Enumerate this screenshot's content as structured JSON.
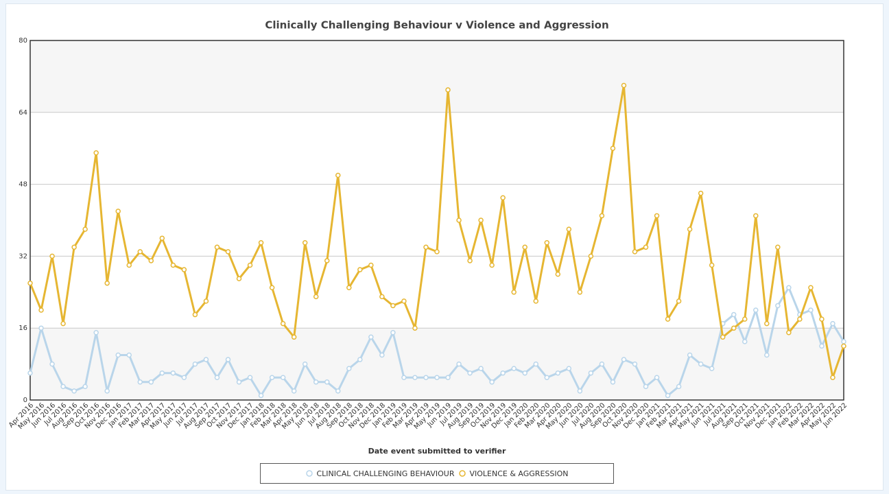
{
  "chart_data": {
    "type": "line",
    "title": "Clinically Challenging Behaviour v Violence and Aggression",
    "x_label": "Date event submitted to verifier",
    "categories": [
      "Apr 2016",
      "May 2016",
      "Jun 2016",
      "Jul 2016",
      "Aug 2016",
      "Sep 2016",
      "Oct 2016",
      "Nov 2016",
      "Dec 2016",
      "Jan 2017",
      "Feb 2017",
      "Mar 2017",
      "Apr 2017",
      "May 2017",
      "Jun 2017",
      "Jul 2017",
      "Aug 2017",
      "Sep 2017",
      "Oct 2017",
      "Nov 2017",
      "Dec 2017",
      "Jan 2018",
      "Feb 2018",
      "Mar 2018",
      "Apr 2018",
      "May 2018",
      "Jun 2018",
      "Jul 2018",
      "Aug 2018",
      "Sep 2018",
      "Oct 2018",
      "Nov 2018",
      "Dec 2018",
      "Jan 2019",
      "Feb 2019",
      "Mar 2019",
      "Apr 2019",
      "May 2019",
      "Jun 2019",
      "Jul 2019",
      "Aug 2019",
      "Sep 2019",
      "Oct 2019",
      "Nov 2019",
      "Dec 2019",
      "Jan 2020",
      "Feb 2020",
      "Mar 2020",
      "Apr 2020",
      "May 2020",
      "Jun 2020",
      "Jul 2020",
      "Aug 2020",
      "Sep 2020",
      "Oct 2020",
      "Nov 2020",
      "Dec 2020",
      "Jan 2021",
      "Feb 2021",
      "Mar 2021",
      "Apr 2021",
      "May 2021",
      "Jun 2021",
      "Jul 2021",
      "Aug 2021",
      "Sep 2021",
      "Oct 2021",
      "Nov 2021",
      "Dec 2021",
      "Jan 2022",
      "Feb 2022",
      "Mar 2022",
      "Apr 2022",
      "May 2022",
      "Jun 2022"
    ],
    "series": [
      {
        "name": "CLINICAL CHALLENGING BEHAVIOUR",
        "color": "#b9d5ea",
        "values": [
          6,
          16,
          8,
          3,
          2,
          3,
          15,
          2,
          10,
          10,
          4,
          4,
          6,
          6,
          5,
          8,
          9,
          5,
          9,
          4,
          5,
          1,
          5,
          5,
          2,
          8,
          4,
          4,
          2,
          7,
          9,
          14,
          10,
          15,
          5,
          5,
          5,
          5,
          5,
          8,
          6,
          7,
          4,
          6,
          7,
          6,
          8,
          5,
          6,
          7,
          2,
          6,
          8,
          4,
          9,
          8,
          3,
          5,
          1,
          3,
          10,
          8,
          7,
          17,
          19,
          13,
          20,
          10,
          21,
          25,
          19,
          20,
          12,
          17,
          13
        ]
      },
      {
        "name": "VIOLENCE & AGGRESSION",
        "color": "#e6b632",
        "values": [
          26,
          20,
          32,
          17,
          34,
          38,
          55,
          26,
          42,
          30,
          33,
          31,
          36,
          30,
          29,
          19,
          22,
          34,
          33,
          27,
          30,
          35,
          25,
          17,
          14,
          35,
          23,
          31,
          50,
          25,
          29,
          30,
          23,
          21,
          22,
          16,
          34,
          33,
          69,
          40,
          31,
          40,
          30,
          45,
          24,
          34,
          22,
          35,
          28,
          38,
          24,
          32,
          41,
          56,
          70,
          33,
          34,
          41,
          18,
          22,
          38,
          46,
          30,
          14,
          16,
          18,
          41,
          17,
          34,
          15,
          18,
          25,
          18,
          5,
          12
        ]
      }
    ],
    "ylim": [
      0,
      80
    ],
    "yticks": [
      0,
      16,
      32,
      48,
      64,
      80
    ],
    "grid": true
  }
}
